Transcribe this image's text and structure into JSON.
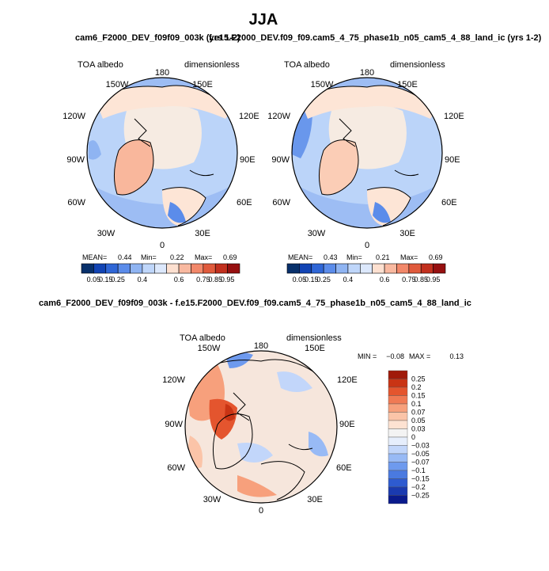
{
  "figure": {
    "season": "JJA",
    "run1_title": "cam6_F2000_DEV_f09f09_003k (yrs 1-2)",
    "run2_title": "f.e15.F2000_DEV.f09_f09.cam5_4_75_phase1b_n05_cam5_4_88_land_ic (yrs 1-2)",
    "diff_title": "cam6_F2000_DEV_f09f09_003k - f.e15.F2000_DEV.f09_f09.cam5_4_75_phase1b_n05_cam5_4_88_land_ic"
  },
  "colors": {
    "abs_levels": [
      "#08306b",
      "#1244b4",
      "#2f66d6",
      "#5b8cea",
      "#8fb4f2",
      "#bfd6fa",
      "#dce8fc",
      "#fde0d0",
      "#f9b9a0",
      "#f2886a",
      "#e05a3c",
      "#c2301e",
      "#961010"
    ],
    "diff_levels": [
      "#0a1a8c",
      "#1a3ab0",
      "#2e5bd0",
      "#4a7ae0",
      "#6e9aee",
      "#98baf5",
      "#c2d6fa",
      "#e6eefc",
      "#f3f3f3",
      "#fde2d2",
      "#fbc4a8",
      "#f7a07c",
      "#f07a54",
      "#e4552e",
      "#c93414",
      "#a01a0a"
    ],
    "abs_land": "#fde5d6",
    "abs_greenland": "#f9b79c",
    "abs_ocean": "#9dbdf4"
  },
  "chart_data": [
    {
      "type": "heatmap",
      "projection": "north-polar-stereographic",
      "title": "cam6_F2000_DEV_f09f09_003k (yrs 1-2)",
      "field_label": "TOA albedo",
      "units": "dimensionless",
      "longitude_labels": [
        "180",
        "150E",
        "120E",
        "90E",
        "60E",
        "30E",
        "0",
        "30W",
        "60W",
        "90W",
        "120W",
        "150W"
      ],
      "stats": {
        "mean_label": "MEAN=",
        "mean": "0.44",
        "min_label": "Min=",
        "min": "0.22",
        "max_label": "Max=",
        "max": "0.69"
      },
      "colorbar_ticks": [
        "0.05",
        "0.15",
        "0.25",
        "0.4",
        "0.6",
        "0.75",
        "0.85",
        "0.95"
      ]
    },
    {
      "type": "heatmap",
      "projection": "north-polar-stereographic",
      "title": "f.e15.F2000_DEV.f09_f09.cam5_4_75_phase1b_n05_cam5_4_88_land_ic (yrs 1-2)",
      "field_label": "TOA albedo",
      "units": "dimensionless",
      "longitude_labels": [
        "180",
        "150E",
        "120E",
        "90E",
        "60E",
        "30E",
        "0",
        "30W",
        "60W",
        "90W",
        "120W",
        "150W"
      ],
      "stats": {
        "mean_label": "MEAN=",
        "mean": "0.43",
        "min_label": "Min=",
        "min": "0.21",
        "max_label": "Max=",
        "max": "0.69"
      },
      "colorbar_ticks": [
        "0.05",
        "0.15",
        "0.25",
        "0.4",
        "0.6",
        "0.75",
        "0.85",
        "0.95"
      ]
    },
    {
      "type": "heatmap",
      "projection": "north-polar-stereographic",
      "title": "cam6_F2000_DEV_f09f09_003k - f.e15.F2000_DEV.f09_f09.cam5_4_75_phase1b_n05_cam5_4_88_land_ic",
      "field_label": "TOA albedo",
      "units": "dimensionless",
      "longitude_labels": [
        "180",
        "150E",
        "120E",
        "90E",
        "60E",
        "30E",
        "0",
        "30W",
        "60W",
        "90W",
        "120W",
        "150W"
      ],
      "stats": {
        "min_label": "MIN =",
        "min": "−0.08",
        "max_label": "MAX =",
        "max": "0.13"
      },
      "colorbar_ticks": [
        "0.25",
        "0.2",
        "0.15",
        "0.1",
        "0.07",
        "0.05",
        "0.03",
        "0",
        "−0.03",
        "−0.05",
        "−0.07",
        "−0.1",
        "−0.15",
        "−0.2",
        "−0.25"
      ]
    }
  ]
}
